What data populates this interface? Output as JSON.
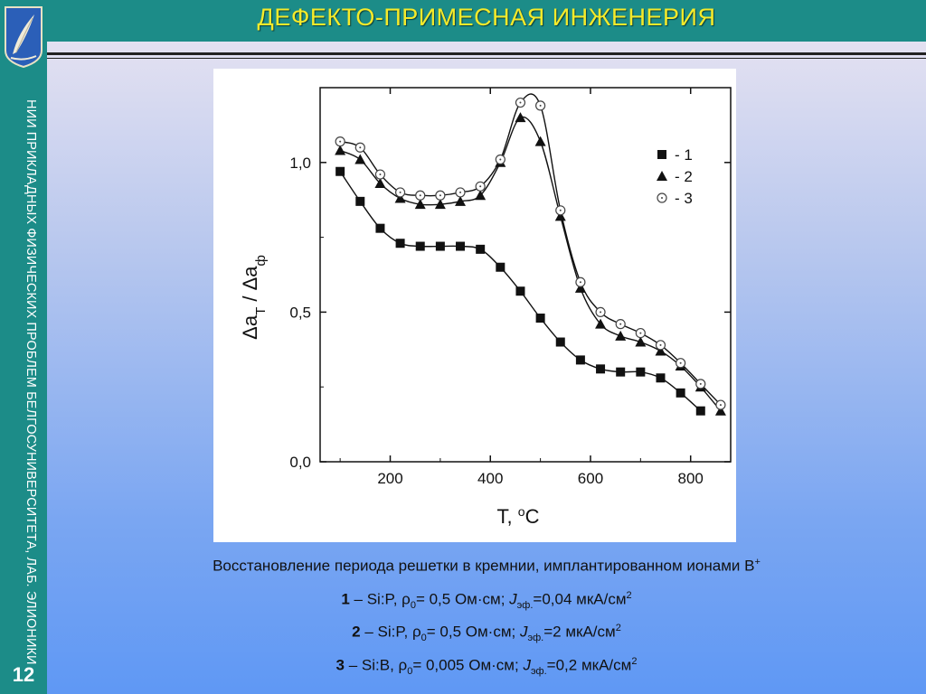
{
  "header": {
    "title": "ДЕФЕКТО-ПРИМЕСНАЯ ИНЖЕНЕРИЯ"
  },
  "sidebar": {
    "text": "НИИ ПРИКЛАДНЫХ ФИЗИЧЕСКИХ ПРОБЛЕМ БЕЛГОСУНИВЕРСИТЕТА, ЛАБ. ЭЛИОНИКИ",
    "page_number": "12"
  },
  "colors": {
    "teal": "#1c8c88",
    "title_yellow": "#f5ea2a"
  },
  "chart_data": {
    "type": "line",
    "xlabel": "T, °C",
    "ylabel": "Δa_T / Δa_ф",
    "xlim": [
      60,
      880
    ],
    "ylim": [
      0,
      1.25
    ],
    "xticks": [
      200,
      400,
      600,
      800
    ],
    "yticks": [
      0,
      0.5,
      1.0
    ],
    "xtick_labels": [
      "200",
      "400",
      "600",
      "800"
    ],
    "ytick_labels": [
      "0,0",
      "0,5",
      "1,0"
    ],
    "grid": false,
    "legend_position": "top-right",
    "series": [
      {
        "name": "- 1",
        "marker": "square",
        "x": [
          100,
          140,
          180,
          220,
          260,
          300,
          340,
          380,
          420,
          460,
          500,
          540,
          580,
          620,
          660,
          700,
          740,
          780,
          820
        ],
        "y": [
          0.97,
          0.87,
          0.78,
          0.73,
          0.72,
          0.72,
          0.72,
          0.71,
          0.65,
          0.57,
          0.48,
          0.4,
          0.34,
          0.31,
          0.3,
          0.3,
          0.28,
          0.23,
          0.17
        ]
      },
      {
        "name": "- 2",
        "marker": "triangle",
        "x": [
          100,
          140,
          180,
          220,
          260,
          300,
          340,
          380,
          420,
          460,
          500,
          540,
          580,
          620,
          660,
          700,
          740,
          780,
          820,
          860
        ],
        "y": [
          1.04,
          1.01,
          0.93,
          0.88,
          0.86,
          0.86,
          0.87,
          0.89,
          1.0,
          1.15,
          1.07,
          0.82,
          0.58,
          0.46,
          0.42,
          0.4,
          0.37,
          0.32,
          0.25,
          0.17
        ]
      },
      {
        "name": "- 3",
        "marker": "open-circle",
        "x": [
          100,
          140,
          180,
          220,
          260,
          300,
          340,
          380,
          420,
          460,
          500,
          540,
          580,
          620,
          660,
          700,
          740,
          780,
          820,
          860
        ],
        "y": [
          1.07,
          1.05,
          0.96,
          0.9,
          0.89,
          0.89,
          0.9,
          0.92,
          1.01,
          1.2,
          1.19,
          0.84,
          0.6,
          0.5,
          0.46,
          0.43,
          0.39,
          0.33,
          0.26,
          0.19
        ]
      }
    ]
  },
  "caption": {
    "line0": {
      "text": "Восстановление периода решетки в кремнии, имплантированном ионами B",
      "sup": "+"
    },
    "lines": [
      {
        "num": "1",
        "material": " – Si:P, ρ",
        "rho_sub": "0",
        "rho_val": "= 0,5 Ом·см; ",
        "j": "J",
        "j_sub": "эф.",
        "j_val": "=0,04 мкА/см",
        "unit_sup": "2"
      },
      {
        "num": "2",
        "material": " – Si:P, ρ",
        "rho_sub": "0",
        "rho_val": "= 0,5 Ом·см; ",
        "j": "J",
        "j_sub": "эф.",
        "j_val": "=2 мкА/см",
        "unit_sup": "2"
      },
      {
        "num": "3",
        "material": " – Si:B, ρ",
        "rho_sub": "0",
        "rho_val": "= 0,005 Ом·см; ",
        "j": "J",
        "j_sub": "эф.",
        "j_val": "=0,2 мкА/см",
        "unit_sup": "2"
      }
    ]
  }
}
